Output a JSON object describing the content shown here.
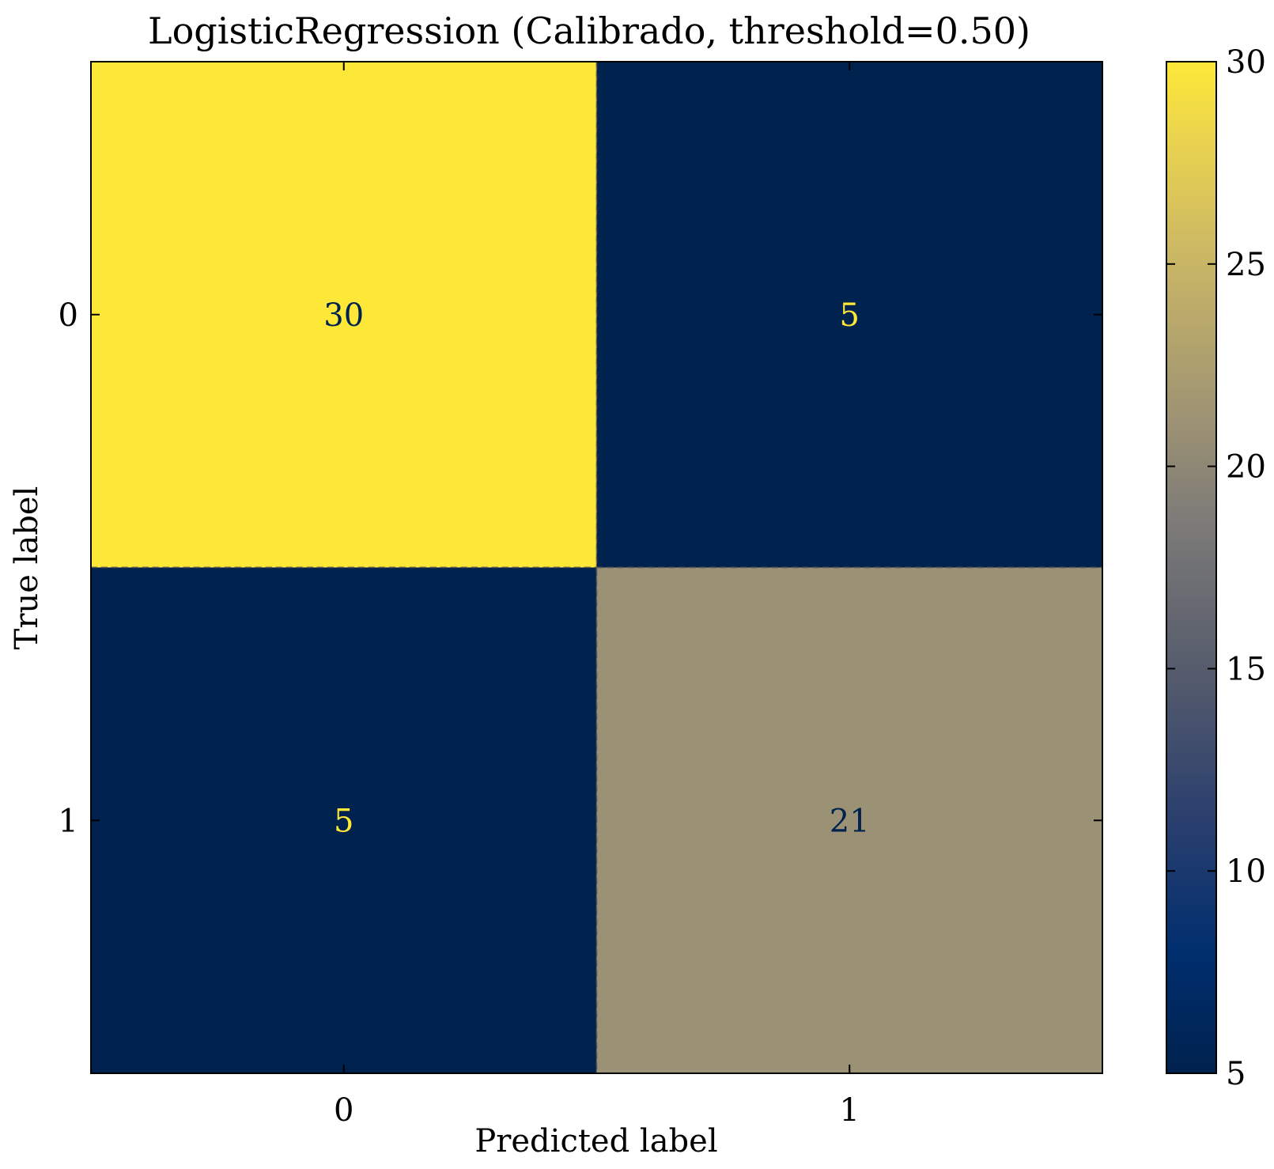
{
  "chart_data": {
    "type": "heatmap",
    "title": "LogisticRegression (Calibrado, threshold=0.50)",
    "xlabel": "Predicted label",
    "ylabel": "True label",
    "x_categories": [
      "0",
      "1"
    ],
    "y_categories": [
      "0",
      "1"
    ],
    "matrix": [
      [
        30,
        5
      ],
      [
        5,
        21
      ]
    ],
    "colormap": "cividis",
    "colorbar": {
      "min": 5,
      "max": 30,
      "ticks": [
        "5",
        "10",
        "15",
        "20",
        "25",
        "30"
      ]
    },
    "text_color_low": "#fde838",
    "text_color_high": "#00224e",
    "grid": false
  }
}
